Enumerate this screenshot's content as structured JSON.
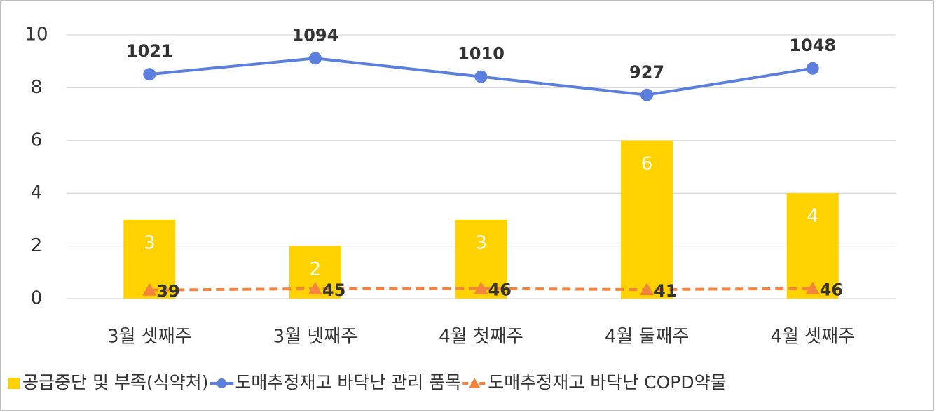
{
  "chart_data": {
    "type": "bar",
    "categories": [
      "3월 셋째주",
      "3월 넷째주",
      "4월 첫째주",
      "4월 둘째주",
      "4월 셋째주"
    ],
    "ylim": [
      0,
      10
    ],
    "yticks": [
      0,
      2,
      4,
      6,
      8,
      10
    ],
    "y2lim": [
      0,
      1200
    ],
    "grid": true,
    "legend": "bottom",
    "series": [
      {
        "name": "공급중단 및 부족(식약처)",
        "type": "bar",
        "color": "#ffd200",
        "values": [
          3,
          2,
          3,
          6,
          4
        ]
      },
      {
        "name": "도매추정재고 바닥난 관리 품목",
        "type": "line",
        "axis": "y2",
        "color": "#5b7fde",
        "values": [
          1021,
          1094,
          1010,
          927,
          1048
        ]
      },
      {
        "name": "도매추정재고 바닥난 COPD약물",
        "type": "line",
        "axis": "y2",
        "dash": true,
        "marker": "triangle",
        "color": "#f4843d",
        "values": [
          39,
          45,
          46,
          41,
          46
        ]
      }
    ]
  }
}
